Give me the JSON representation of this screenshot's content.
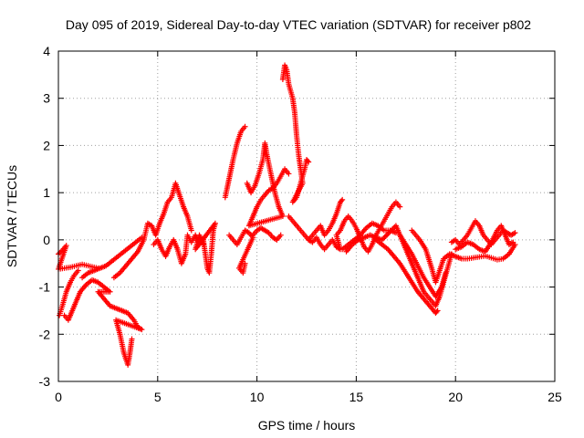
{
  "chart_data": {
    "type": "scatter",
    "title": "Day 095 of 2019, Sidereal Day-to-day VTEC variation (SDTVAR) for receiver p802",
    "xlabel": "GPS time / hours",
    "ylabel": "SDTVAR / TECUs",
    "xlim": [
      0,
      25
    ],
    "ylim": [
      -3,
      4
    ],
    "x_ticks": [
      "0",
      "5",
      "10",
      "15",
      "20",
      "25"
    ],
    "y_ticks": [
      "-3",
      "-2",
      "-1",
      "0",
      "1",
      "2",
      "3",
      "4"
    ],
    "grid": true,
    "marker": "+",
    "series_color": "#ff0000",
    "series": [
      {
        "name": "p802",
        "points": [
          [
            0.0,
            -0.3
          ],
          [
            0.2,
            -0.22
          ],
          [
            0.4,
            -0.12
          ],
          [
            0.0,
            -0.62
          ],
          [
            0.3,
            -0.6
          ],
          [
            0.6,
            -0.58
          ],
          [
            0.9,
            -0.55
          ],
          [
            1.2,
            -0.52
          ],
          [
            1.5,
            -0.55
          ],
          [
            1.8,
            -0.58
          ],
          [
            2.0,
            -0.6
          ],
          [
            0.05,
            -1.6
          ],
          [
            0.2,
            -1.4
          ],
          [
            0.4,
            -1.1
          ],
          [
            0.6,
            -0.9
          ],
          [
            0.8,
            -0.75
          ],
          [
            1.0,
            -0.65
          ],
          [
            0.3,
            -1.6
          ],
          [
            0.5,
            -1.7
          ],
          [
            0.7,
            -1.5
          ],
          [
            0.9,
            -1.3
          ],
          [
            1.1,
            -1.1
          ],
          [
            1.4,
            -0.95
          ],
          [
            1.7,
            -0.85
          ],
          [
            2.0,
            -0.9
          ],
          [
            2.3,
            -1.0
          ],
          [
            2.6,
            -1.1
          ],
          [
            2.0,
            -1.1
          ],
          [
            2.3,
            -1.25
          ],
          [
            2.6,
            -1.4
          ],
          [
            2.9,
            -1.45
          ],
          [
            3.2,
            -1.5
          ],
          [
            3.5,
            -1.55
          ],
          [
            3.8,
            -1.7
          ],
          [
            4.0,
            -1.85
          ],
          [
            4.2,
            -1.9
          ],
          [
            2.9,
            -1.7
          ],
          [
            3.1,
            -2.0
          ],
          [
            3.3,
            -2.4
          ],
          [
            3.5,
            -2.65
          ],
          [
            3.6,
            -2.4
          ],
          [
            3.7,
            -2.1
          ],
          [
            1.2,
            -0.8
          ],
          [
            1.5,
            -0.7
          ],
          [
            1.8,
            -0.65
          ],
          [
            2.1,
            -0.6
          ],
          [
            2.4,
            -0.55
          ],
          [
            2.7,
            -0.45
          ],
          [
            3.0,
            -0.35
          ],
          [
            3.3,
            -0.25
          ],
          [
            3.6,
            -0.15
          ],
          [
            3.9,
            -0.05
          ],
          [
            4.2,
            0.05
          ],
          [
            2.8,
            -0.8
          ],
          [
            3.1,
            -0.7
          ],
          [
            3.4,
            -0.55
          ],
          [
            3.7,
            -0.4
          ],
          [
            4.0,
            -0.25
          ],
          [
            4.3,
            0.0
          ],
          [
            4.5,
            0.35
          ],
          [
            4.7,
            0.3
          ],
          [
            4.9,
            0.1
          ],
          [
            5.1,
            0.35
          ],
          [
            5.3,
            0.55
          ],
          [
            5.5,
            0.8
          ],
          [
            5.7,
            0.9
          ],
          [
            5.9,
            1.2
          ],
          [
            6.1,
            0.95
          ],
          [
            6.3,
            0.7
          ],
          [
            6.5,
            0.5
          ],
          [
            6.7,
            0.2
          ],
          [
            4.8,
            -0.1
          ],
          [
            5.0,
            0.0
          ],
          [
            5.2,
            -0.2
          ],
          [
            5.4,
            -0.35
          ],
          [
            5.6,
            -0.15
          ],
          [
            5.8,
            0.0
          ],
          [
            6.0,
            -0.2
          ],
          [
            6.2,
            -0.5
          ],
          [
            6.4,
            -0.3
          ],
          [
            6.5,
            0.1
          ],
          [
            6.7,
            -0.05
          ],
          [
            6.9,
            0.1
          ],
          [
            7.1,
            -0.1
          ],
          [
            7.3,
            0.0
          ],
          [
            7.5,
            -0.6
          ],
          [
            7.6,
            -0.7
          ],
          [
            7.7,
            -0.3
          ],
          [
            7.8,
            0.2
          ],
          [
            7.9,
            0.35
          ],
          [
            6.9,
            -0.2
          ],
          [
            7.1,
            0.1
          ],
          [
            7.3,
            -0.1
          ],
          [
            8.4,
            0.9
          ],
          [
            8.6,
            1.3
          ],
          [
            8.8,
            1.7
          ],
          [
            9.0,
            2.05
          ],
          [
            9.2,
            2.3
          ],
          [
            9.4,
            2.4
          ],
          [
            8.6,
            0.1
          ],
          [
            8.8,
            0.0
          ],
          [
            9.0,
            -0.1
          ],
          [
            9.2,
            0.05
          ],
          [
            9.4,
            0.2
          ],
          [
            9.6,
            0.15
          ],
          [
            9.8,
            0.05
          ],
          [
            9.1,
            -0.6
          ],
          [
            9.3,
            -0.7
          ],
          [
            9.4,
            -0.5
          ],
          [
            9.5,
            1.2
          ],
          [
            9.7,
            1.0
          ],
          [
            9.9,
            1.15
          ],
          [
            10.1,
            1.4
          ],
          [
            10.3,
            1.7
          ],
          [
            10.4,
            2.05
          ],
          [
            10.5,
            1.8
          ],
          [
            10.7,
            1.4
          ],
          [
            10.9,
            1.0
          ],
          [
            11.1,
            0.7
          ],
          [
            11.3,
            0.5
          ],
          [
            9.6,
            0.3
          ],
          [
            9.8,
            0.5
          ],
          [
            10.0,
            0.7
          ],
          [
            10.2,
            0.85
          ],
          [
            10.4,
            0.95
          ],
          [
            10.6,
            1.05
          ],
          [
            10.8,
            1.1
          ],
          [
            11.0,
            1.2
          ],
          [
            11.2,
            1.35
          ],
          [
            11.4,
            1.5
          ],
          [
            11.6,
            1.4
          ],
          [
            9.8,
            0.1
          ],
          [
            10.0,
            0.2
          ],
          [
            10.2,
            0.25
          ],
          [
            10.4,
            0.2
          ],
          [
            10.6,
            0.15
          ],
          [
            10.8,
            0.05
          ],
          [
            11.0,
            0.0
          ],
          [
            11.2,
            0.1
          ],
          [
            11.3,
            3.4
          ],
          [
            11.4,
            3.7
          ],
          [
            11.5,
            3.6
          ],
          [
            11.6,
            3.3
          ],
          [
            11.8,
            3.0
          ],
          [
            11.9,
            2.7
          ],
          [
            12.0,
            2.2
          ],
          [
            12.1,
            1.8
          ],
          [
            12.2,
            1.5
          ],
          [
            12.3,
            1.2
          ],
          [
            11.8,
            0.8
          ],
          [
            12.0,
            0.9
          ],
          [
            12.2,
            1.2
          ],
          [
            12.4,
            1.5
          ],
          [
            12.5,
            1.7
          ],
          [
            12.6,
            1.65
          ],
          [
            11.6,
            0.5
          ],
          [
            11.8,
            0.4
          ],
          [
            12.0,
            0.3
          ],
          [
            12.2,
            0.2
          ],
          [
            12.4,
            0.1
          ],
          [
            12.6,
            0.0
          ],
          [
            12.8,
            0.1
          ],
          [
            13.0,
            0.2
          ],
          [
            13.2,
            0.3
          ],
          [
            13.4,
            0.1
          ],
          [
            13.6,
            0.2
          ],
          [
            13.8,
            0.35
          ],
          [
            14.0,
            0.55
          ],
          [
            14.2,
            0.8
          ],
          [
            14.3,
            0.85
          ],
          [
            12.6,
            0.0
          ],
          [
            12.8,
            -0.05
          ],
          [
            13.0,
            0.05
          ],
          [
            13.2,
            -0.1
          ],
          [
            13.4,
            -0.2
          ],
          [
            13.6,
            -0.1
          ],
          [
            13.8,
            0.0
          ],
          [
            14.0,
            -0.15
          ],
          [
            14.2,
            -0.2
          ],
          [
            14.0,
            0.1
          ],
          [
            14.2,
            0.2
          ],
          [
            14.4,
            0.4
          ],
          [
            14.6,
            0.5
          ],
          [
            14.8,
            0.4
          ],
          [
            15.0,
            0.25
          ],
          [
            15.2,
            0.05
          ],
          [
            15.4,
            -0.15
          ],
          [
            15.6,
            -0.25
          ],
          [
            15.8,
            -0.1
          ],
          [
            16.0,
            0.1
          ],
          [
            16.2,
            0.25
          ],
          [
            16.4,
            0.4
          ],
          [
            16.6,
            0.55
          ],
          [
            16.8,
            0.7
          ],
          [
            17.0,
            0.8
          ],
          [
            17.2,
            0.7
          ],
          [
            14.3,
            -0.2
          ],
          [
            14.6,
            -0.1
          ],
          [
            14.9,
            0.0
          ],
          [
            15.2,
            0.1
          ],
          [
            15.5,
            0.25
          ],
          [
            15.8,
            0.35
          ],
          [
            16.1,
            0.3
          ],
          [
            16.4,
            0.2
          ],
          [
            16.7,
            0.2
          ],
          [
            17.0,
            0.15
          ],
          [
            14.5,
            -0.25
          ],
          [
            14.8,
            -0.1
          ],
          [
            15.1,
            0.0
          ],
          [
            15.4,
            0.05
          ],
          [
            15.7,
            0.1
          ],
          [
            16.0,
            0.05
          ],
          [
            16.3,
            0.0
          ],
          [
            17.0,
            0.3
          ],
          [
            17.2,
            0.1
          ],
          [
            17.4,
            -0.1
          ],
          [
            17.6,
            -0.3
          ],
          [
            17.8,
            -0.5
          ],
          [
            18.0,
            -0.7
          ],
          [
            18.2,
            -0.9
          ],
          [
            18.4,
            -1.1
          ],
          [
            18.6,
            -1.2
          ],
          [
            18.8,
            -1.3
          ],
          [
            19.0,
            -1.4
          ],
          [
            19.2,
            -1.2
          ],
          [
            19.4,
            -0.9
          ],
          [
            19.6,
            -0.6
          ],
          [
            19.8,
            -0.3
          ],
          [
            16.0,
            0.0
          ],
          [
            16.3,
            -0.1
          ],
          [
            16.6,
            -0.2
          ],
          [
            16.9,
            -0.35
          ],
          [
            17.2,
            -0.5
          ],
          [
            17.5,
            -0.7
          ],
          [
            17.8,
            -0.9
          ],
          [
            18.1,
            -1.1
          ],
          [
            18.4,
            -1.25
          ],
          [
            18.7,
            -1.4
          ],
          [
            19.0,
            -1.55
          ],
          [
            19.1,
            -1.5
          ],
          [
            17.2,
            0.1
          ],
          [
            17.5,
            -0.1
          ],
          [
            17.8,
            -0.3
          ],
          [
            18.1,
            -0.55
          ],
          [
            18.4,
            -0.8
          ],
          [
            18.7,
            -1.0
          ],
          [
            19.0,
            -1.2
          ],
          [
            19.3,
            -1.0
          ],
          [
            19.5,
            -0.7
          ],
          [
            17.8,
            0.2
          ],
          [
            18.0,
            0.1
          ],
          [
            18.2,
            0.0
          ],
          [
            18.5,
            -0.2
          ],
          [
            18.8,
            -0.6
          ],
          [
            19.0,
            -0.9
          ],
          [
            19.4,
            -0.4
          ],
          [
            19.7,
            -0.3
          ],
          [
            20.0,
            -0.35
          ],
          [
            20.3,
            -0.4
          ],
          [
            20.6,
            -0.4
          ],
          [
            20.9,
            -0.38
          ],
          [
            21.2,
            -0.36
          ],
          [
            21.5,
            -0.34
          ],
          [
            21.8,
            -0.38
          ],
          [
            22.1,
            -0.42
          ],
          [
            22.4,
            -0.4
          ],
          [
            22.7,
            -0.3
          ],
          [
            23.0,
            -0.1
          ],
          [
            19.8,
            -0.05
          ],
          [
            20.0,
            0.0
          ],
          [
            20.2,
            -0.1
          ],
          [
            20.4,
            0.0
          ],
          [
            20.6,
            0.1
          ],
          [
            20.8,
            0.25
          ],
          [
            21.0,
            0.4
          ],
          [
            21.2,
            0.3
          ],
          [
            21.4,
            0.1
          ],
          [
            21.6,
            0.0
          ],
          [
            21.8,
            -0.1
          ],
          [
            22.0,
            0.0
          ],
          [
            22.2,
            0.1
          ],
          [
            22.4,
            0.2
          ],
          [
            22.6,
            0.15
          ],
          [
            22.8,
            0.1
          ],
          [
            23.0,
            0.15
          ],
          [
            20.0,
            -0.2
          ],
          [
            20.3,
            -0.15
          ],
          [
            20.6,
            -0.05
          ],
          [
            20.9,
            -0.1
          ],
          [
            21.2,
            -0.2
          ],
          [
            21.5,
            -0.25
          ],
          [
            21.8,
            -0.05
          ],
          [
            22.1,
            0.2
          ],
          [
            22.3,
            0.3
          ],
          [
            22.5,
            0.1
          ],
          [
            22.7,
            -0.1
          ],
          [
            22.9,
            -0.05
          ]
        ]
      }
    ]
  }
}
